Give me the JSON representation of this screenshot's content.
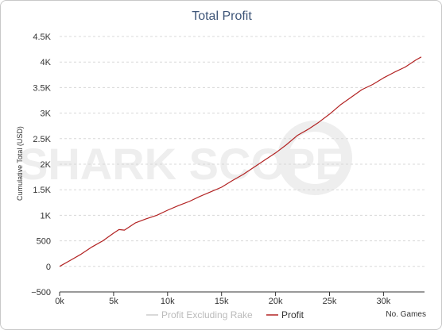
{
  "chart_data": {
    "type": "line",
    "title": "Total Profit",
    "ylabel": "Cumulative Total (USD)",
    "xlabel": "No. Games",
    "xlim": [
      0,
      33800
    ],
    "ylim": [
      -500,
      4500
    ],
    "x_ticks": [
      0,
      5000,
      10000,
      15000,
      20000,
      25000,
      30000
    ],
    "x_tick_labels": [
      "0k",
      "5k",
      "10k",
      "15k",
      "20k",
      "25k",
      "30k"
    ],
    "y_ticks": [
      -500,
      0,
      500,
      1000,
      1500,
      2000,
      2500,
      3000,
      3500,
      4000,
      4500
    ],
    "y_tick_labels": [
      "−500",
      "0",
      "500",
      "1K",
      "1.5K",
      "2K",
      "2.5K",
      "3K",
      "3.5K",
      "4K",
      "4.5K"
    ],
    "grid": true,
    "legend_position": "bottom-center",
    "series": [
      {
        "name": "Profit Excluding Rake",
        "color": "#cccccc",
        "visible": false,
        "x": [],
        "y": []
      },
      {
        "name": "Profit",
        "color": "#b22222",
        "visible": true,
        "x": [
          0,
          1000,
          2000,
          3000,
          4000,
          5000,
          5500,
          6000,
          7000,
          8000,
          9000,
          10000,
          11000,
          12000,
          13000,
          14000,
          15000,
          16000,
          17000,
          18000,
          19000,
          20000,
          21000,
          22000,
          23000,
          24000,
          25000,
          26000,
          27000,
          28000,
          29000,
          30000,
          31000,
          32000,
          33000,
          33500
        ],
        "y": [
          0,
          120,
          240,
          380,
          500,
          650,
          720,
          710,
          850,
          930,
          1000,
          1100,
          1190,
          1270,
          1370,
          1460,
          1550,
          1680,
          1800,
          1940,
          2080,
          2220,
          2380,
          2560,
          2680,
          2820,
          2980,
          3160,
          3310,
          3460,
          3560,
          3690,
          3800,
          3900,
          4040,
          4100
        ]
      }
    ]
  },
  "watermark": "SHARK SCOPE"
}
